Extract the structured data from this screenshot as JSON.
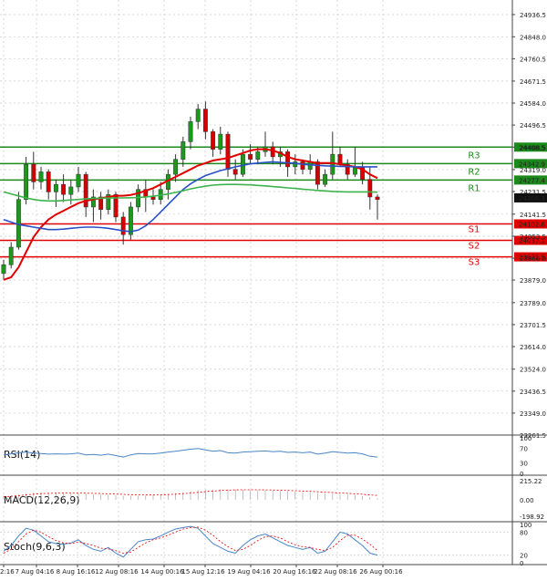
{
  "chart_data": {
    "type": "candlestick",
    "title": "",
    "price_axis": {
      "range": [
        23261.5,
        24980
      ],
      "ticks": [
        "24936.5",
        "24848.0",
        "24760.5",
        "24671.5",
        "24584.0",
        "24496.5",
        "24408.5",
        "24319.0",
        "24231.5",
        "24141.5",
        "24053.5",
        "23966.0",
        "23879.0",
        "23789.0",
        "23701.5",
        "23614.0",
        "23524.0",
        "23436.5",
        "23349.0",
        "23261.5"
      ]
    },
    "x_axis": {
      "labels": [
        "2:16",
        "7 Aug 04:16",
        "8 Aug 16:16",
        "12 Aug 08:16",
        "14 Aug 00:16",
        "15 Aug 12:16",
        "19 Aug 04:16",
        "20 Aug 16:16",
        "22 Aug 08:16",
        "26 Aug 00:16"
      ]
    },
    "levels": [
      {
        "name": "R3",
        "value": 24408.5,
        "label": "24408.5",
        "color": "#1b8a1b"
      },
      {
        "name": "R2",
        "value": 24342.9,
        "label": "24342.9",
        "color": "#1b8a1b"
      },
      {
        "name": "R1",
        "value": 24277.4,
        "label": "24277.4",
        "color": "#1b8a1b"
      },
      {
        "name": "S1",
        "value": 24102.6,
        "label": "24102.6",
        "color": "#e00000"
      },
      {
        "name": "S2",
        "value": 24037.1,
        "label": "24037.1",
        "color": "#e00000"
      },
      {
        "name": "S3",
        "value": 23971.5,
        "label": "23971.5",
        "color": "#e00000"
      }
    ],
    "current_price": {
      "value": 24206.3,
      "label": "24206.3"
    },
    "candles": [
      [
        23905,
        23960,
        23880,
        23940
      ],
      [
        23940,
        24030,
        23925,
        24010
      ],
      [
        24010,
        24230,
        24000,
        24200
      ],
      [
        24200,
        24370,
        24180,
        24340
      ],
      [
        24340,
        24390,
        24240,
        24270
      ],
      [
        24270,
        24330,
        24240,
        24310
      ],
      [
        24310,
        24320,
        24200,
        24230
      ],
      [
        24230,
        24280,
        24170,
        24260
      ],
      [
        24260,
        24300,
        24190,
        24220
      ],
      [
        24220,
        24280,
        24180,
        24250
      ],
      [
        24250,
        24330,
        24230,
        24300
      ],
      [
        24300,
        24310,
        24130,
        24170
      ],
      [
        24170,
        24240,
        24110,
        24210
      ],
      [
        24210,
        24230,
        24120,
        24160
      ],
      [
        24160,
        24240,
        24140,
        24220
      ],
      [
        24220,
        24230,
        24110,
        24130
      ],
      [
        24130,
        24150,
        24020,
        24060
      ],
      [
        24060,
        24190,
        24040,
        24170
      ],
      [
        24170,
        24260,
        24150,
        24240
      ],
      [
        24240,
        24280,
        24150,
        24210
      ],
      [
        24210,
        24240,
        24180,
        24200
      ],
      [
        24200,
        24270,
        24180,
        24240
      ],
      [
        24240,
        24320,
        24200,
        24300
      ],
      [
        24300,
        24380,
        24270,
        24360
      ],
      [
        24360,
        24450,
        24330,
        24430
      ],
      [
        24430,
        24530,
        24400,
        24510
      ],
      [
        24510,
        24580,
        24480,
        24560
      ],
      [
        24560,
        24590,
        24440,
        24470
      ],
      [
        24470,
        24480,
        24370,
        24400
      ],
      [
        24400,
        24490,
        24380,
        24460
      ],
      [
        24460,
        24470,
        24290,
        24320
      ],
      [
        24320,
        24360,
        24280,
        24300
      ],
      [
        24300,
        24400,
        24290,
        24380
      ],
      [
        24380,
        24420,
        24340,
        24360
      ],
      [
        24360,
        24410,
        24340,
        24390
      ],
      [
        24390,
        24470,
        24370,
        24410
      ],
      [
        24410,
        24430,
        24340,
        24370
      ],
      [
        24370,
        24410,
        24330,
        24390
      ],
      [
        24390,
        24400,
        24290,
        24330
      ],
      [
        24330,
        24380,
        24300,
        24350
      ],
      [
        24350,
        24360,
        24300,
        24320
      ],
      [
        24320,
        24380,
        24300,
        24350
      ],
      [
        24350,
        24360,
        24240,
        24260
      ],
      [
        24260,
        24320,
        24250,
        24300
      ],
      [
        24300,
        24470,
        24280,
        24380
      ],
      [
        24380,
        24410,
        24330,
        24340
      ],
      [
        24340,
        24360,
        24280,
        24300
      ],
      [
        24300,
        24410,
        24290,
        24330
      ],
      [
        24330,
        24350,
        24260,
        24280
      ],
      [
        24280,
        24330,
        24160,
        24210
      ],
      [
        24210,
        24220,
        24120,
        24200
      ]
    ],
    "ma_lines": [
      {
        "name": "MA red",
        "color": "#e00000",
        "values": [
          23880,
          23890,
          23930,
          23990,
          24050,
          24090,
          24120,
          24140,
          24155,
          24170,
          24185,
          24195,
          24200,
          24205,
          24210,
          24215,
          24215,
          24218,
          24225,
          24235,
          24245,
          24260,
          24275,
          24290,
          24305,
          24320,
          24335,
          24345,
          24355,
          24360,
          24365,
          24375,
          24385,
          24395,
          24400,
          24400,
          24395,
          24385,
          24370,
          24360,
          24355,
          24350,
          24345,
          24345,
          24345,
          24340,
          24335,
          24330,
          24320,
          24300,
          24285
        ]
      },
      {
        "name": "MA blue",
        "color": "#2a50c8",
        "values": [
          24120,
          24110,
          24100,
          24095,
          24090,
          24085,
          24080,
          24080,
          24082,
          24085,
          24088,
          24090,
          24090,
          24088,
          24085,
          24080,
          24075,
          24072,
          24078,
          24095,
          24120,
          24150,
          24180,
          24210,
          24240,
          24262,
          24280,
          24295,
          24305,
          24315,
          24322,
          24330,
          24336,
          24342,
          24345,
          24348,
          24350,
          24348,
          24346,
          24344,
          24340,
          24338,
          24336,
          24334,
          24333,
          24332,
          24331,
          24330,
          24330,
          24330,
          24330
        ]
      },
      {
        "name": "MA green",
        "color": "#3cb44b",
        "values": [
          24230,
          24222,
          24214,
          24206,
          24200,
          24196,
          24194,
          24194,
          24196,
          24198,
          24200,
          24202,
          24204,
          24205,
          24206,
          24206,
          24206,
          24207,
          24208,
          24210,
          24213,
          24217,
          24222,
          24228,
          24235,
          24242,
          24248,
          24253,
          24257,
          24259,
          24260,
          24260,
          24259,
          24258,
          24256,
          24254,
          24251,
          24249,
          24246,
          24244,
          24241,
          24239,
          24236,
          24234,
          24232,
          24231,
          24230,
          24230,
          24230,
          24230,
          24229
        ]
      }
    ],
    "indicators": [
      {
        "name": "RSI",
        "title": "RSI(14)",
        "ticks": [
          "100",
          "70",
          "30",
          "0"
        ],
        "values": [
          52,
          55,
          58,
          60,
          57,
          56,
          54,
          55,
          54,
          55,
          57,
          52,
          53,
          51,
          54,
          50,
          46,
          52,
          56,
          55,
          55,
          57,
          60,
          62,
          65,
          68,
          70,
          66,
          62,
          64,
          58,
          57,
          60,
          61,
          62,
          63,
          61,
          62,
          59,
          60,
          58,
          60,
          54,
          57,
          61,
          59,
          57,
          58,
          55,
          48,
          46
        ]
      },
      {
        "name": "MACD",
        "title": "MACD(12,26,9)",
        "ticks": [
          "215.22",
          "0.00",
          "-198.92"
        ],
        "histogram": [
          40,
          45,
          55,
          65,
          70,
          72,
          70,
          68,
          66,
          64,
          62,
          58,
          55,
          52,
          50,
          45,
          40,
          38,
          38,
          40,
          44,
          50,
          58,
          66,
          75,
          85,
          95,
          100,
          102,
          104,
          103,
          100,
          98,
          96,
          94,
          92,
          90,
          88,
          84,
          80,
          76,
          72,
          66,
          62,
          60,
          56,
          50,
          44,
          36,
          26,
          16
        ],
        "signal": [
          30,
          34,
          40,
          48,
          55,
          60,
          63,
          65,
          66,
          66,
          66,
          65,
          63,
          61,
          59,
          56,
          53,
          50,
          48,
          47,
          47,
          48,
          51,
          55,
          60,
          66,
          73,
          80,
          86,
          91,
          95,
          97,
          98,
          98,
          98,
          97,
          96,
          94,
          92,
          89,
          86,
          83,
          79,
          75,
          71,
          67,
          63,
          59,
          54,
          48,
          42
        ]
      },
      {
        "name": "Stoch",
        "title": "Stoch(9,6,3)",
        "ticks": [
          "100",
          "80",
          "20",
          "0"
        ],
        "k": [
          30,
          45,
          70,
          90,
          85,
          70,
          55,
          50,
          48,
          52,
          60,
          45,
          35,
          30,
          40,
          25,
          15,
          35,
          55,
          60,
          62,
          70,
          80,
          88,
          92,
          95,
          90,
          70,
          50,
          40,
          30,
          25,
          45,
          60,
          70,
          75,
          65,
          55,
          45,
          40,
          35,
          40,
          25,
          30,
          55,
          80,
          75,
          60,
          45,
          25,
          20
        ],
        "d": [
          25,
          35,
          55,
          75,
          85,
          80,
          68,
          58,
          52,
          50,
          54,
          50,
          45,
          38,
          36,
          32,
          25,
          28,
          40,
          52,
          60,
          65,
          72,
          80,
          88,
          92,
          93,
          85,
          72,
          55,
          42,
          32,
          35,
          45,
          58,
          68,
          70,
          65,
          55,
          47,
          42,
          40,
          35,
          32,
          40,
          58,
          72,
          72,
          62,
          48,
          32
        ]
      }
    ]
  }
}
